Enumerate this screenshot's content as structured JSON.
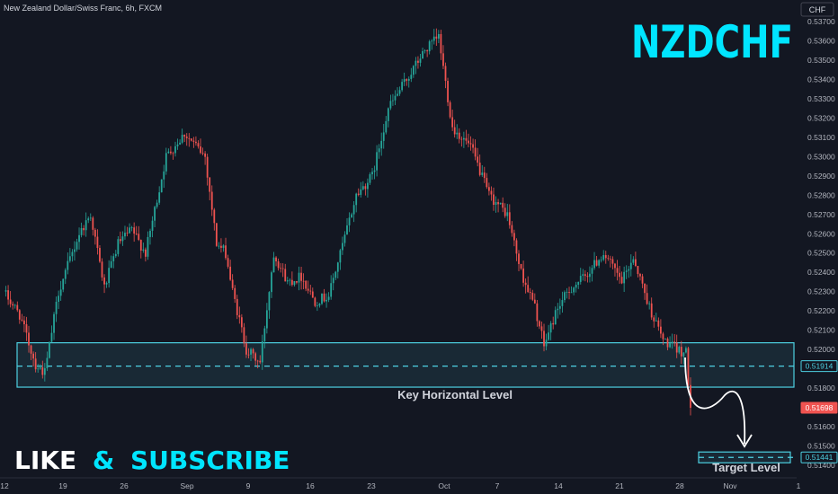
{
  "header": {
    "symbol_title": "New Zealand Dollar/Swiss Franc, 6h, FXCM",
    "currency": "CHF"
  },
  "overlay": {
    "pair_name": "NZDCHF",
    "like_text": "LIKE",
    "amp_text": "&",
    "subscribe_text": "SUBSCRIBE",
    "key_level_label": "Key Horizontal Level",
    "target_label": "Target Level"
  },
  "colors": {
    "background": "#131722",
    "up": "#26a69a",
    "down": "#ef5350",
    "accent": "#00e5ff",
    "zone": "#4dd0e1",
    "text": "#d1d4dc",
    "axis_text": "#b2b5be"
  },
  "chart_data": {
    "type": "candlestick",
    "x_ticks": [
      "12",
      "19",
      "26",
      "Sep",
      "9",
      "16",
      "23",
      "Oct",
      "7",
      "14",
      "21",
      "28",
      "Nov",
      "1"
    ],
    "y_ticks": [
      "0.53700",
      "0.53600",
      "0.53500",
      "0.53400",
      "0.53300",
      "0.53200",
      "0.53100",
      "0.53000",
      "0.52900",
      "0.52800",
      "0.52700",
      "0.52600",
      "0.52500",
      "0.52400",
      "0.52300",
      "0.52200",
      "0.52100",
      "0.52000",
      "0.51900",
      "0.51800",
      "0.51700",
      "0.51600",
      "0.51500",
      "0.51400"
    ],
    "ylim": [
      0.51335,
      0.53765
    ],
    "price_labels": [
      {
        "value": 0.51914,
        "text": "0.51914",
        "kind": "level"
      },
      {
        "value": 0.51698,
        "text": "0.51698",
        "kind": "current"
      },
      {
        "value": 0.51441,
        "text": "0.51441",
        "kind": "target"
      }
    ],
    "key_zone": {
      "low": 0.51805,
      "high": 0.52035,
      "level": 0.51914
    },
    "target_level": 0.51441,
    "path_points": [
      {
        "bar": 0,
        "close": 0.523
      },
      {
        "bar": 7,
        "close": 0.5218
      },
      {
        "bar": 14,
        "close": 0.5192
      },
      {
        "bar": 18,
        "close": 0.5188
      },
      {
        "bar": 24,
        "close": 0.523
      },
      {
        "bar": 33,
        "close": 0.526
      },
      {
        "bar": 38,
        "close": 0.527
      },
      {
        "bar": 44,
        "close": 0.5232
      },
      {
        "bar": 50,
        "close": 0.5255
      },
      {
        "bar": 56,
        "close": 0.5262
      },
      {
        "bar": 62,
        "close": 0.525
      },
      {
        "bar": 71,
        "close": 0.53
      },
      {
        "bar": 79,
        "close": 0.5312
      },
      {
        "bar": 88,
        "close": 0.53
      },
      {
        "bar": 93,
        "close": 0.5255
      },
      {
        "bar": 97,
        "close": 0.525
      },
      {
        "bar": 100,
        "close": 0.523
      },
      {
        "bar": 106,
        "close": 0.52
      },
      {
        "bar": 112,
        "close": 0.5193
      },
      {
        "bar": 118,
        "close": 0.525
      },
      {
        "bar": 124,
        "close": 0.5235
      },
      {
        "bar": 130,
        "close": 0.5238
      },
      {
        "bar": 136,
        "close": 0.5225
      },
      {
        "bar": 142,
        "close": 0.5228
      },
      {
        "bar": 154,
        "close": 0.528
      },
      {
        "bar": 161,
        "close": 0.529
      },
      {
        "bar": 168,
        "close": 0.5325
      },
      {
        "bar": 176,
        "close": 0.534
      },
      {
        "bar": 184,
        "close": 0.5355
      },
      {
        "bar": 190,
        "close": 0.5362
      },
      {
        "bar": 196,
        "close": 0.5315
      },
      {
        "bar": 204,
        "close": 0.5305
      },
      {
        "bar": 212,
        "close": 0.528
      },
      {
        "bar": 220,
        "close": 0.527
      },
      {
        "bar": 226,
        "close": 0.524
      },
      {
        "bar": 232,
        "close": 0.5222
      },
      {
        "bar": 236,
        "close": 0.5202
      },
      {
        "bar": 242,
        "close": 0.5222
      },
      {
        "bar": 248,
        "close": 0.5232
      },
      {
        "bar": 254,
        "close": 0.5238
      },
      {
        "bar": 262,
        "close": 0.525
      },
      {
        "bar": 270,
        "close": 0.5235
      },
      {
        "bar": 275,
        "close": 0.5248
      },
      {
        "bar": 282,
        "close": 0.5222
      },
      {
        "bar": 288,
        "close": 0.5205
      },
      {
        "bar": 294,
        "close": 0.52
      },
      {
        "bar": 298,
        "close": 0.5198
      },
      {
        "bar": 300,
        "close": 0.517
      }
    ]
  }
}
